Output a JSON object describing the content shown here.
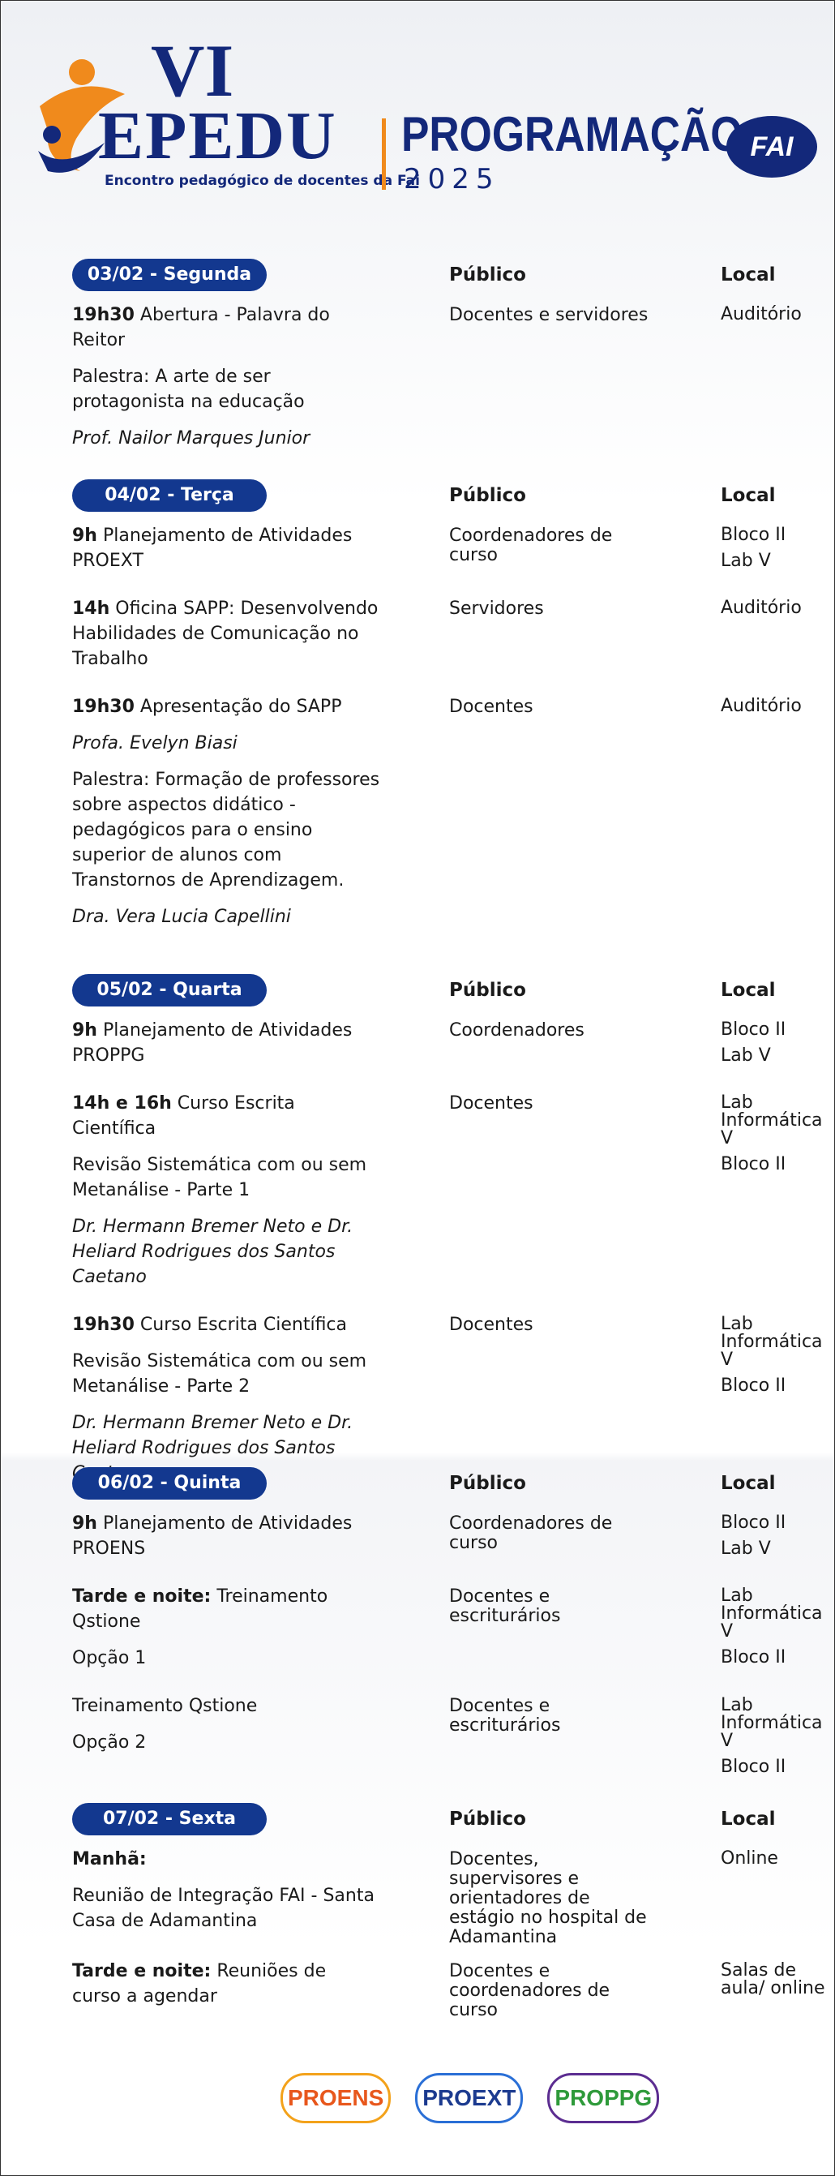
{
  "header": {
    "logo_top": "VI",
    "logo_main": "EPEDU",
    "tagline": "Encontro pedagógico de docentes da",
    "tagline_bold": "Fai",
    "title": "PROGRAMAÇÃO",
    "year": "2025",
    "badge": "FAI"
  },
  "days": [
    {
      "label": "03/02 - Segunda",
      "public_header": "Público",
      "local_header": "Local",
      "items": [
        {
          "lines": [
            {
              "b": "19h30",
              "t": "Abertura - Palavra do Reitor"
            },
            {
              "t": "Palestra: A arte de ser protagonista na educação"
            },
            {
              "i": "Prof. Nailor Marques Junior"
            }
          ],
          "publico": "Docentes e servidores",
          "local": [
            "Auditório"
          ]
        }
      ]
    },
    {
      "label": "04/02 - Terça",
      "public_header": "Público",
      "local_header": "Local",
      "items": [
        {
          "lines": [
            {
              "b": "9h",
              "t": "Planejamento de Atividades PROEXT"
            }
          ],
          "publico": "Coordenadores de curso",
          "local": [
            "Bloco II",
            "Lab V"
          ]
        },
        {
          "lines": [
            {
              "b": "14h",
              "t": "Oficina SAPP: Desenvolvendo Habilidades de Comunicação no Trabalho"
            }
          ],
          "publico": "Servidores",
          "local": [
            "Auditório"
          ]
        },
        {
          "lines": [
            {
              "b": "19h30",
              "t": "Apresentação do SAPP"
            },
            {
              "i": "Profa. Evelyn Biasi"
            },
            {
              "t": "Palestra: Formação de professores sobre aspectos didático - pedagógicos para o ensino superior de alunos com Transtornos de Aprendizagem."
            },
            {
              "i": "Dra. Vera Lucia Capellini"
            }
          ],
          "publico": "Docentes",
          "local": [
            "Auditório"
          ]
        }
      ]
    },
    {
      "label": "05/02 - Quarta",
      "public_header": "Público",
      "local_header": "Local",
      "items": [
        {
          "lines": [
            {
              "b": "9h",
              "t": "Planejamento de Atividades PROPPG"
            }
          ],
          "publico": "Coordenadores",
          "local": [
            "Bloco II",
            "Lab V"
          ]
        },
        {
          "lines": [
            {
              "b": "14h e 16h",
              "t": "Curso Escrita Científica"
            },
            {
              "t": "Revisão Sistemática com ou sem Metanálise - Parte 1"
            },
            {
              "i": "Dr. Hermann Bremer Neto e Dr. Heliard Rodrigues dos Santos Caetano"
            }
          ],
          "publico": "Docentes",
          "local": [
            "Lab Informática V",
            "Bloco II"
          ]
        },
        {
          "lines": [
            {
              "b": "19h30",
              "t": "Curso Escrita Científica"
            },
            {
              "t": "Revisão Sistemática com ou sem Metanálise - Parte 2"
            },
            {
              "i": "Dr. Hermann Bremer Neto e Dr. Heliard Rodrigues dos Santos Caetano"
            }
          ],
          "publico": "Docentes",
          "local": [
            "Lab Informática V",
            "Bloco II"
          ]
        }
      ]
    },
    {
      "label": "06/02 - Quinta",
      "public_header": "Público",
      "local_header": "Local",
      "items": [
        {
          "lines": [
            {
              "b": "9h",
              "t": "Planejamento de Atividades PROENS"
            }
          ],
          "publico": "Coordenadores de curso",
          "local": [
            "Bloco II",
            "Lab V"
          ]
        },
        {
          "lines": [
            {
              "b": "Tarde e noite:",
              "t": "Treinamento Qstione"
            },
            {
              "t": "Opção 1"
            }
          ],
          "publico": "Docentes e escriturários",
          "local": [
            "Lab Informática V",
            "Bloco II"
          ]
        },
        {
          "lines": [
            {
              "t": "Treinamento Qstione"
            },
            {
              "t": "Opção 2"
            }
          ],
          "publico": "Docentes e escriturários",
          "local": [
            "Lab Informática V",
            "Bloco II"
          ]
        }
      ]
    },
    {
      "label": "07/02 - Sexta",
      "public_header": "Público",
      "local_header": "Local",
      "items": [
        {
          "lines": [
            {
              "b": "Manhã:"
            },
            {
              "t": "Reunião de Integração FAI - Santa Casa de Adamantina"
            }
          ],
          "publico": "Docentes, supervisores e orientadores de estágio no hospital de Adamantina",
          "local": [
            "Online"
          ]
        },
        {
          "lines": [
            {
              "b": "Tarde e noite:",
              "t": "Reuniões de curso a agendar"
            }
          ],
          "publico": "Docentes e coordenadores de curso",
          "local": [
            "Salas de aula/ online"
          ]
        }
      ]
    }
  ],
  "footer": {
    "logos": [
      "PROENS",
      "PROEXT",
      "PROPPG"
    ]
  }
}
